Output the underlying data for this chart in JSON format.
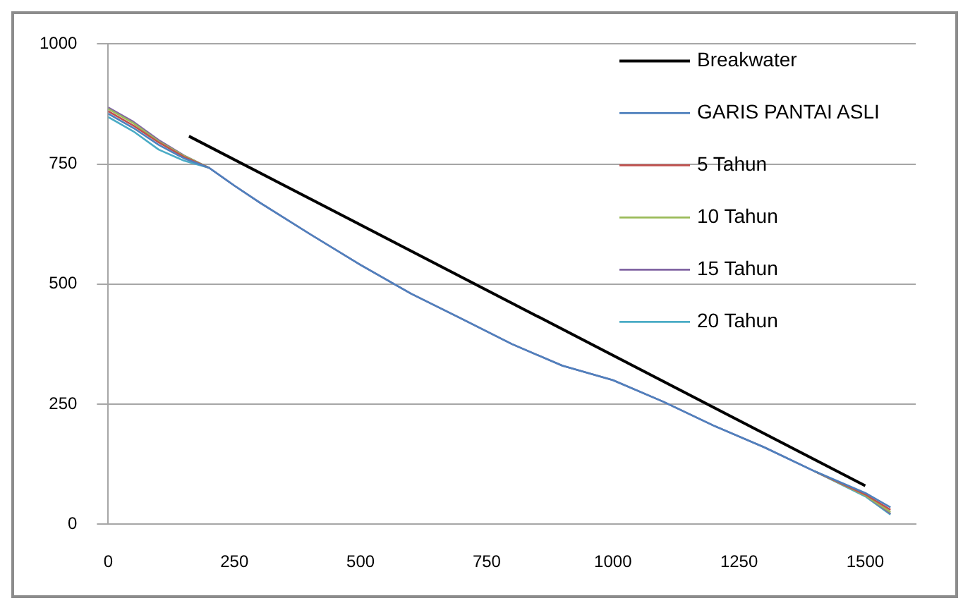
{
  "chart_data": {
    "type": "line",
    "x": [
      0,
      50,
      100,
      150,
      200,
      250,
      300,
      400,
      500,
      600,
      700,
      800,
      900,
      1000,
      1100,
      1200,
      1300,
      1400,
      1500,
      1550
    ],
    "xlim": [
      0,
      1600
    ],
    "xticks": [
      0,
      250,
      500,
      750,
      1000,
      1250,
      1500
    ],
    "ylim": [
      0,
      1000
    ],
    "yticks": [
      0,
      250,
      500,
      750,
      1000
    ],
    "grid": "y",
    "legend": "top right",
    "marker": "none",
    "line_style": "solid",
    "series": [
      {
        "name": "Breakwater",
        "color": "#000000",
        "x": [
          160,
          1500
        ],
        "values": [
          808,
          80
        ]
      },
      {
        "name": "GARIS PANTAI ASLI",
        "color": "#4f81bd",
        "values": [
          855,
          825,
          790,
          762,
          742,
          705,
          670,
          604,
          540,
          480,
          428,
          375,
          330,
          300,
          255,
          205,
          160,
          110,
          65,
          35
        ]
      },
      {
        "name": "5 Tahun",
        "color": "#c0504d",
        "values": [
          860,
          830,
          795,
          765,
          742,
          null,
          null,
          null,
          null,
          null,
          null,
          null,
          null,
          null,
          null,
          null,
          null,
          110,
          62,
          30
        ]
      },
      {
        "name": "10 Tahun",
        "color": "#9bbb59",
        "values": [
          865,
          835,
          797,
          767,
          742,
          null,
          null,
          null,
          null,
          null,
          null,
          null,
          null,
          null,
          null,
          null,
          null,
          110,
          60,
          25
        ]
      },
      {
        "name": "15 Tahun",
        "color": "#8064a2",
        "values": [
          868,
          838,
          800,
          768,
          742,
          705,
          670,
          604,
          540,
          480,
          428,
          375,
          330,
          300,
          255,
          205,
          160,
          110,
          60,
          22
        ]
      },
      {
        "name": "20 Tahun",
        "color": "#4bacc6",
        "values": [
          848,
          818,
          780,
          757,
          742,
          null,
          null,
          null,
          null,
          null,
          null,
          null,
          null,
          null,
          null,
          null,
          null,
          110,
          58,
          20
        ]
      }
    ]
  }
}
